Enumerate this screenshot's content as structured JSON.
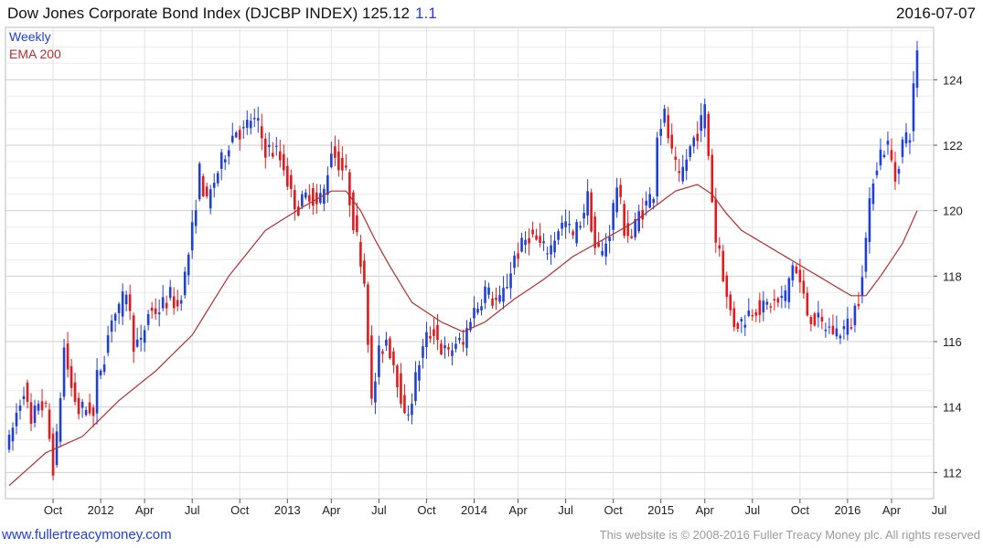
{
  "header": {
    "title": "Dow Jones Corporate Bond Index (DJCBP INDEX) 125.12",
    "change": "1.1",
    "date": "2016-07-07"
  },
  "footer": {
    "site": "www.fullertreacymoney.com",
    "copyright": "This website is © 2008-2016 Fuller Treacy Money plc. All rights reserved"
  },
  "colors": {
    "up": "#1f3fd6",
    "down": "#e31a1c",
    "ema": "#b03030",
    "grid": "#d9d9d9"
  },
  "chart_data": {
    "type": "line",
    "title": "Dow Jones Corporate Bond Index (DJCBP INDEX)",
    "ylim": [
      111.2,
      125.6
    ],
    "y_ticks": [
      112,
      114,
      116,
      118,
      120,
      122,
      124
    ],
    "x_range": [
      0,
      251
    ],
    "x_ticks": [
      {
        "label": "Oct",
        "x": 12
      },
      {
        "label": "2012",
        "x": 25
      },
      {
        "label": "Apr",
        "x": 37
      },
      {
        "label": "Jul",
        "x": 50
      },
      {
        "label": "Oct",
        "x": 63
      },
      {
        "label": "2013",
        "x": 76
      },
      {
        "label": "Apr",
        "x": 88
      },
      {
        "label": "Jul",
        "x": 101
      },
      {
        "label": "Oct",
        "x": 114
      },
      {
        "label": "2014",
        "x": 127
      },
      {
        "label": "Apr",
        "x": 139
      },
      {
        "label": "Jul",
        "x": 152
      },
      {
        "label": "Oct",
        "x": 165
      },
      {
        "label": "2015",
        "x": 178
      },
      {
        "label": "Apr",
        "x": 190
      },
      {
        "label": "Jul",
        "x": 203
      },
      {
        "label": "Oct",
        "x": 216
      },
      {
        "label": "2016",
        "x": 229
      },
      {
        "label": "Apr",
        "x": 241
      },
      {
        "label": "Jul",
        "x": 254
      }
    ],
    "legend": [
      "Weekly",
      "EMA 200"
    ],
    "series": [
      {
        "name": "Weekly",
        "style": "high-low bars",
        "anchors": [
          [
            0,
            112.9
          ],
          [
            2,
            113.8
          ],
          [
            4,
            114.6
          ],
          [
            6,
            113.4
          ],
          [
            8,
            114.2
          ],
          [
            10,
            113.9
          ],
          [
            12,
            112.2
          ],
          [
            13,
            113.0
          ],
          [
            15,
            115.8
          ],
          [
            17,
            114.6
          ],
          [
            19,
            113.9
          ],
          [
            22,
            114.0
          ],
          [
            23,
            113.7
          ],
          [
            24,
            114.9
          ],
          [
            26,
            115.6
          ],
          [
            28,
            116.8
          ],
          [
            30,
            116.9
          ],
          [
            32,
            117.6
          ],
          [
            34,
            116.0
          ],
          [
            36,
            115.9
          ],
          [
            38,
            116.9
          ],
          [
            41,
            117.0
          ],
          [
            44,
            117.4
          ],
          [
            46,
            117.1
          ],
          [
            48,
            118.0
          ],
          [
            50,
            119.4
          ],
          [
            52,
            121.2
          ],
          [
            54,
            120.2
          ],
          [
            56,
            120.9
          ],
          [
            58,
            121.5
          ],
          [
            60,
            122.1
          ],
          [
            62,
            122.5
          ],
          [
            64,
            122.4
          ],
          [
            66,
            122.8
          ],
          [
            68,
            122.6
          ],
          [
            70,
            121.9
          ],
          [
            73,
            121.8
          ],
          [
            75,
            121.4
          ],
          [
            77,
            120.5
          ],
          [
            79,
            120.1
          ],
          [
            82,
            120.6
          ],
          [
            84,
            120.2
          ],
          [
            86,
            120.6
          ],
          [
            88,
            121.9
          ],
          [
            90,
            121.5
          ],
          [
            92,
            121.1
          ],
          [
            94,
            119.7
          ],
          [
            96,
            118.6
          ],
          [
            97,
            117.9
          ],
          [
            98,
            116.2
          ],
          [
            99,
            114.1
          ],
          [
            101,
            115.6
          ],
          [
            103,
            116.1
          ],
          [
            105,
            115.4
          ],
          [
            107,
            114.4
          ],
          [
            108,
            113.6
          ],
          [
            110,
            114.3
          ],
          [
            112,
            115.4
          ],
          [
            114,
            116.1
          ],
          [
            116,
            116.4
          ],
          [
            118,
            115.8
          ],
          [
            120,
            115.6
          ],
          [
            122,
            116.0
          ],
          [
            124,
            115.9
          ],
          [
            126,
            116.8
          ],
          [
            128,
            117.1
          ],
          [
            130,
            117.6
          ],
          [
            132,
            117.3
          ],
          [
            134,
            117.2
          ],
          [
            136,
            117.8
          ],
          [
            138,
            118.6
          ],
          [
            140,
            118.9
          ],
          [
            142,
            119.3
          ],
          [
            144,
            119.1
          ],
          [
            146,
            118.8
          ],
          [
            148,
            118.9
          ],
          [
            150,
            119.5
          ],
          [
            152,
            119.6
          ],
          [
            154,
            119.2
          ],
          [
            156,
            119.7
          ],
          [
            158,
            120.4
          ],
          [
            160,
            118.9
          ],
          [
            162,
            118.7
          ],
          [
            164,
            119.4
          ],
          [
            166,
            120.8
          ],
          [
            168,
            119.5
          ],
          [
            170,
            119.2
          ],
          [
            172,
            119.9
          ],
          [
            174,
            120.2
          ],
          [
            176,
            120.6
          ],
          [
            177,
            122.4
          ],
          [
            179,
            122.9
          ],
          [
            181,
            121.7
          ],
          [
            183,
            120.9
          ],
          [
            185,
            121.6
          ],
          [
            187,
            122.2
          ],
          [
            189,
            122.7
          ],
          [
            190,
            123.1
          ],
          [
            192,
            120.4
          ],
          [
            193,
            119.1
          ],
          [
            194,
            118.9
          ],
          [
            196,
            117.3
          ],
          [
            198,
            116.6
          ],
          [
            200,
            116.6
          ],
          [
            202,
            116.9
          ],
          [
            204,
            117.1
          ],
          [
            206,
            117.0
          ],
          [
            208,
            117.2
          ],
          [
            210,
            117.2
          ],
          [
            212,
            117.4
          ],
          [
            214,
            118.4
          ],
          [
            216,
            117.8
          ],
          [
            218,
            116.9
          ],
          [
            220,
            116.7
          ],
          [
            222,
            116.5
          ],
          [
            224,
            116.4
          ],
          [
            226,
            116.3
          ],
          [
            228,
            116.4
          ],
          [
            230,
            116.6
          ],
          [
            232,
            117.4
          ],
          [
            234,
            119.1
          ],
          [
            236,
            121.1
          ],
          [
            238,
            121.8
          ],
          [
            240,
            122.0
          ],
          [
            242,
            121.0
          ],
          [
            244,
            122.1
          ],
          [
            246,
            122.4
          ],
          [
            247,
            123.7
          ],
          [
            248,
            125.0
          ]
        ]
      },
      {
        "name": "EMA 200",
        "style": "line",
        "anchors": [
          [
            0,
            111.6
          ],
          [
            10,
            112.6
          ],
          [
            20,
            113.1
          ],
          [
            30,
            114.2
          ],
          [
            40,
            115.1
          ],
          [
            50,
            116.2
          ],
          [
            60,
            118.0
          ],
          [
            70,
            119.4
          ],
          [
            80,
            120.1
          ],
          [
            88,
            120.6
          ],
          [
            92,
            120.6
          ],
          [
            96,
            120.0
          ],
          [
            100,
            119.1
          ],
          [
            104,
            118.3
          ],
          [
            110,
            117.2
          ],
          [
            118,
            116.6
          ],
          [
            124,
            116.3
          ],
          [
            130,
            116.6
          ],
          [
            138,
            117.3
          ],
          [
            146,
            117.9
          ],
          [
            154,
            118.6
          ],
          [
            162,
            119.1
          ],
          [
            170,
            119.6
          ],
          [
            176,
            120.1
          ],
          [
            182,
            120.6
          ],
          [
            188,
            120.8
          ],
          [
            192,
            120.5
          ],
          [
            196,
            119.9
          ],
          [
            200,
            119.4
          ],
          [
            206,
            119.0
          ],
          [
            212,
            118.6
          ],
          [
            218,
            118.2
          ],
          [
            224,
            117.8
          ],
          [
            230,
            117.4
          ],
          [
            234,
            117.4
          ],
          [
            238,
            118.0
          ],
          [
            244,
            119.0
          ],
          [
            248,
            120.0
          ]
        ]
      }
    ]
  }
}
